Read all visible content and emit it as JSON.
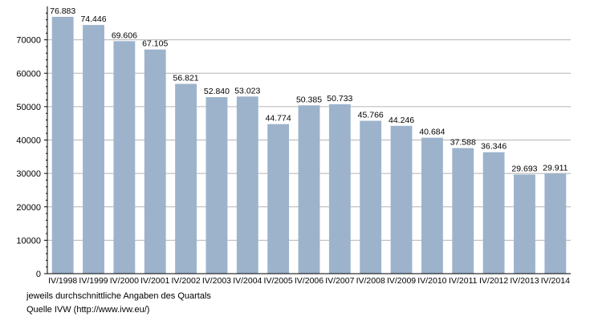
{
  "chart_data": {
    "type": "bar",
    "title": "",
    "xlabel": "",
    "ylabel": "",
    "ylim": [
      0,
      80000
    ],
    "yticks": [
      0,
      10000,
      20000,
      30000,
      40000,
      50000,
      60000,
      70000
    ],
    "ytick_labels": [
      "0",
      "10000",
      "20000",
      "30000",
      "40000",
      "50000",
      "60000",
      "70000"
    ],
    "grid": true,
    "bar_color": "#9db3cc",
    "categories": [
      "IV/1998",
      "IV/1999",
      "IV/2000",
      "IV/2001",
      "IV/2002",
      "IV/2003",
      "IV/2004",
      "IV/2005",
      "IV/2006",
      "IV/2007",
      "IV/2008",
      "IV/2009",
      "IV/2010",
      "IV/2011",
      "IV/2012",
      "IV/2013",
      "IV/2014"
    ],
    "values": [
      76883,
      74446,
      69606,
      67105,
      56821,
      52840,
      53023,
      44774,
      50385,
      50733,
      45766,
      44246,
      40684,
      37588,
      36346,
      29693,
      29911
    ],
    "value_labels": [
      "76.883",
      "74.446",
      "69.606",
      "67.105",
      "56.821",
      "52.840",
      "53.023",
      "44.774",
      "50.385",
      "50.733",
      "45.766",
      "44.246",
      "40.684",
      "37.588",
      "36.346",
      "29.693",
      "29.911"
    ]
  },
  "footer": {
    "note": "jeweils durchschnittliche Angaben des Quartals",
    "source": "Quelle IVW (http://www.ivw.eu/)"
  }
}
